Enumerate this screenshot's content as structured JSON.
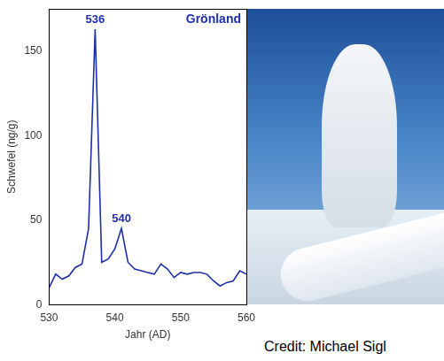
{
  "chart_data": {
    "type": "line",
    "title": "Grönland",
    "x_label": "Jahr (AD)",
    "y_label": "Schwefel (ng/g)",
    "x": [
      530,
      531,
      532,
      533,
      534,
      535,
      536,
      537,
      538,
      539,
      540,
      541,
      542,
      543,
      544,
      545,
      546,
      547,
      548,
      549,
      550,
      551,
      552,
      553,
      554,
      555,
      556,
      557,
      558,
      559,
      560
    ],
    "values": [
      10,
      18,
      15,
      17,
      22,
      24,
      45,
      163,
      25,
      27,
      33,
      45,
      25,
      21,
      20,
      19,
      18,
      24,
      21,
      16,
      19,
      18,
      19,
      19,
      18,
      14,
      11,
      13,
      14,
      20,
      18
    ],
    "color": "#1f2fa8",
    "xlim": [
      530,
      560
    ],
    "xticks": [
      530,
      540,
      550,
      560
    ],
    "ylim": [
      0,
      175
    ],
    "yticks": [
      0,
      50,
      100,
      150
    ],
    "grid": false,
    "annotations": [
      {
        "text": "536",
        "x": 537,
        "y": 163
      },
      {
        "text": "540",
        "x": 541,
        "y": 45
      }
    ]
  },
  "credit": "Credit: Michael Sigl"
}
